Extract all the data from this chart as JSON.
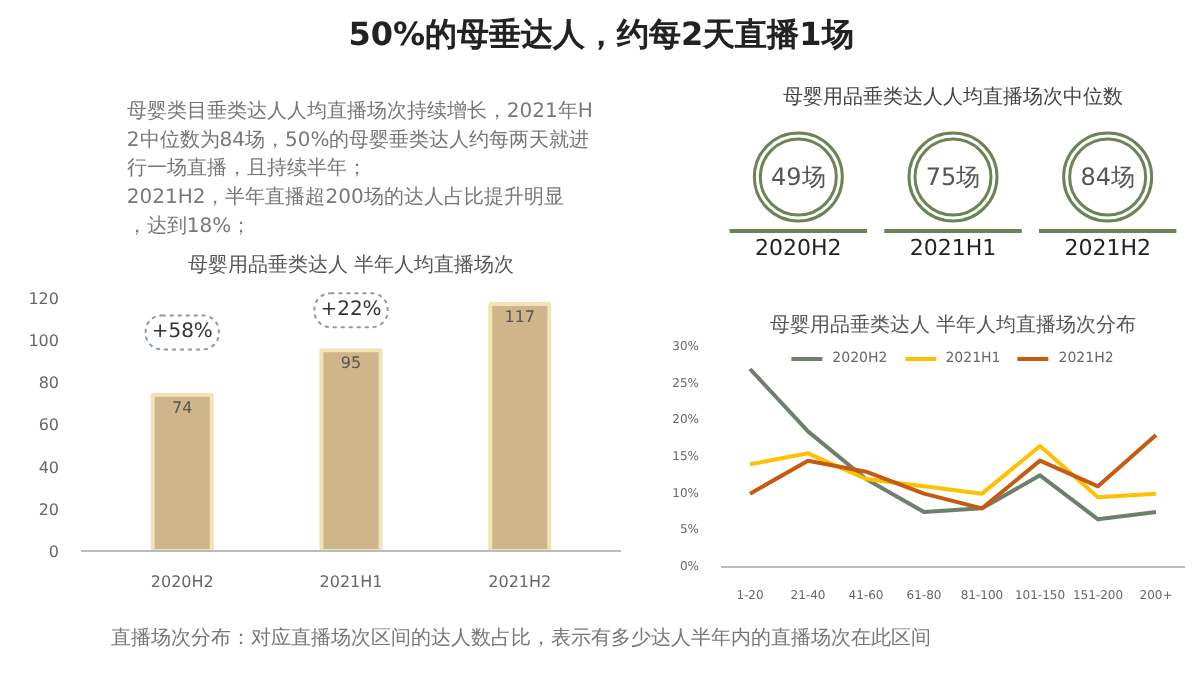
{
  "chart_data": [
    {
      "type": "other",
      "title": "50%的母垂达人，约每2天直播1场",
      "annotations": [
        "母婴类目垂类达人人均直播场次持续增长，2021年H2中位数为84场，50%的母婴垂类达人约每两天就进行一场直播，且持续半年；",
        "2021H2，半年直播超200场的达人占比提升明显，达到18%；"
      ]
    },
    {
      "type": "bar",
      "title": "母婴用品垂类达人 半年人均直播场次",
      "categories": [
        "2020H2",
        "2021H1",
        "2021H2"
      ],
      "values": [
        74,
        95,
        117
      ],
      "color": "#d0b48a",
      "ylim": [
        0,
        125
      ],
      "yticks": [
        0,
        20,
        40,
        60,
        80,
        100,
        120
      ],
      "data_labels": true,
      "grid": false,
      "annotations": [
        "+58%",
        "+22%"
      ]
    },
    {
      "type": "other",
      "title": "母婴用品垂类达人人均直播场次中位数",
      "categories": [
        "2020H2",
        "2021H1",
        "2021H2"
      ],
      "values": [
        49,
        75,
        84
      ],
      "value_labels": [
        "49场",
        "75场",
        "84场"
      ],
      "color": "#6b8456"
    },
    {
      "type": "line",
      "title": "母婴用品垂类达人 半年人均直播场次分布",
      "categories": [
        "1-20",
        "21-40",
        "41-60",
        "61-80",
        "81-100",
        "101-150",
        "151-200",
        "200+"
      ],
      "series": [
        {
          "name": "2020H2",
          "color": "#6e7f6e",
          "values": [
            27,
            18.5,
            12,
            7.5,
            8,
            12.5,
            6.5,
            7.5
          ]
        },
        {
          "name": "2021H1",
          "color": "#ffc000",
          "values": [
            14,
            15.5,
            12,
            11,
            10,
            16.5,
            9.5,
            10
          ]
        },
        {
          "name": "2021H2",
          "color": "#c55a11",
          "values": [
            10,
            14.5,
            13,
            10,
            8,
            14.5,
            11,
            18
          ]
        }
      ],
      "ylim": [
        0,
        30
      ],
      "yticks": [
        {
          "value": 0,
          "label": "0%"
        },
        {
          "value": 5,
          "label": "5%"
        },
        {
          "value": 10,
          "label": "10%"
        },
        {
          "value": 15,
          "label": "15%"
        },
        {
          "value": 20,
          "label": "20%"
        },
        {
          "value": 25,
          "label": "25%"
        },
        {
          "value": 30,
          "label": "30%"
        }
      ],
      "legend": "top",
      "grid": false,
      "marker": "none",
      "annotations": [
        "直播场次分布：对应直播场次区间的达人数占比，表示有多少达人半年内的直播场次在此区间"
      ]
    }
  ]
}
